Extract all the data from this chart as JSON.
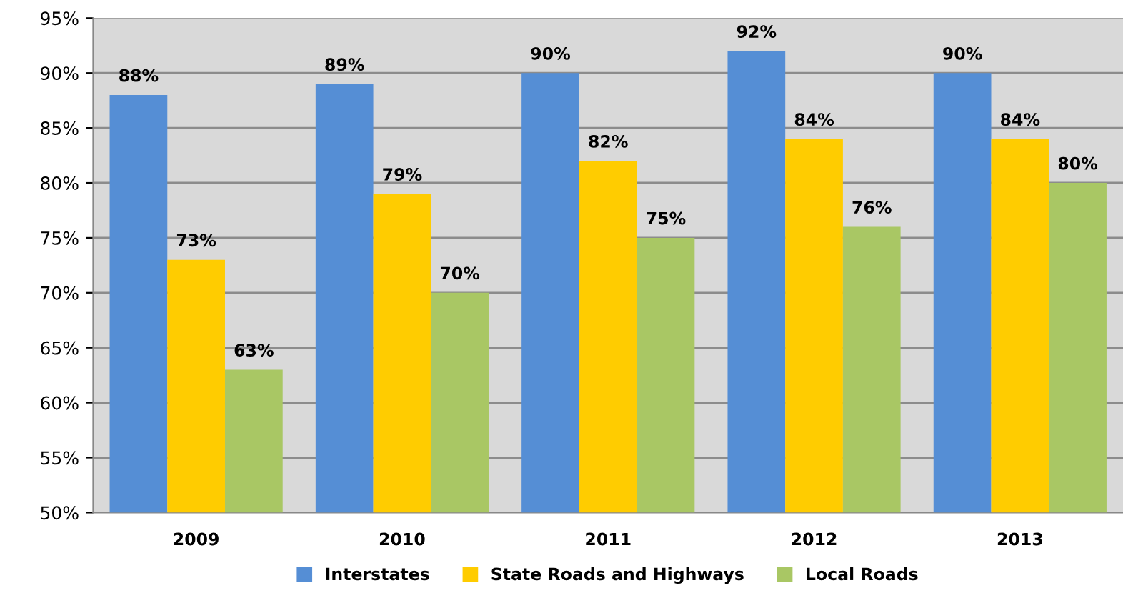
{
  "chart_data": {
    "type": "bar",
    "categories": [
      "2009",
      "2010",
      "2011",
      "2012",
      "2013"
    ],
    "series": [
      {
        "name": "Interstates",
        "color": "#558ed5",
        "values": [
          88,
          89,
          90,
          92,
          90
        ],
        "value_labels": [
          "88%",
          "89%",
          "90%",
          "92%",
          "90%"
        ]
      },
      {
        "name": "State Roads and Highways",
        "color": "#ffcc00",
        "values": [
          73,
          79,
          82,
          84,
          84
        ],
        "value_labels": [
          "73%",
          "79%",
          "82%",
          "84%",
          "84%"
        ]
      },
      {
        "name": "Local Roads",
        "color": "#a9c764",
        "values": [
          63,
          70,
          75,
          76,
          80
        ],
        "value_labels": [
          "63%",
          "70%",
          "75%",
          "76%",
          "80%"
        ]
      }
    ],
    "ylim": [
      50,
      95
    ],
    "yticks": [
      {
        "value": 50,
        "label": "50%"
      },
      {
        "value": 55,
        "label": "55%"
      },
      {
        "value": 60,
        "label": "60%"
      },
      {
        "value": 65,
        "label": "65%"
      },
      {
        "value": 70,
        "label": "70%"
      },
      {
        "value": 75,
        "label": "75%"
      },
      {
        "value": 80,
        "label": "80%"
      },
      {
        "value": 85,
        "label": "85%"
      },
      {
        "value": 90,
        "label": "90%"
      },
      {
        "value": 95,
        "label": "95%"
      }
    ],
    "grid": "y",
    "legend": "bottom"
  }
}
